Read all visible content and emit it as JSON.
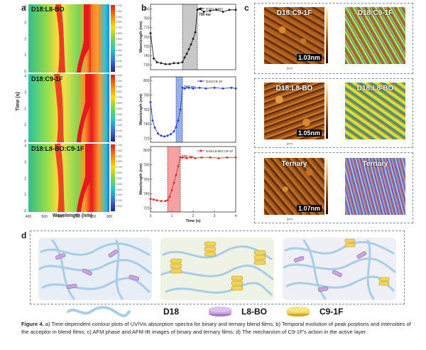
{
  "panels": {
    "a": "a",
    "b": "b",
    "c": "c",
    "d": "d"
  },
  "panel_a": {
    "labels": [
      "D18:L8-BO",
      "D18:C9-1F",
      "D18:L8-BO:C9-1F"
    ],
    "y_axis": "Time (s)",
    "x_axis": "Wavelength (nm)",
    "y_ticks": [
      "0",
      "1",
      "2",
      "3",
      "4"
    ],
    "x_ticks": [
      "400",
      "500",
      "600",
      "700",
      "800",
      "900"
    ],
    "colorbar_ticks": [
      "1.100",
      "1.000",
      "0.900",
      "0.800",
      "0.700",
      "0.600",
      "0.500",
      "0.400",
      "0.300",
      "0.200",
      "0.100",
      "0.000"
    ]
  },
  "chart_data": [
    {
      "type": "line",
      "title": "D18:L8-BO",
      "annotation": "700 ms",
      "ylabel": "Wavelength (nm)",
      "xlabel": "Time (s)",
      "ylim": [
        725,
        795
      ],
      "xlim": [
        0,
        4
      ],
      "y_ticks": [
        730,
        740,
        750,
        760,
        770,
        780,
        790
      ],
      "shaded_span": [
        1.5,
        2.2
      ],
      "x": [
        0.0,
        0.15,
        0.3,
        0.5,
        0.7,
        0.9,
        1.1,
        1.3,
        1.5,
        1.6,
        1.7,
        1.8,
        1.9,
        2.0,
        2.1,
        2.2,
        2.3,
        2.5,
        2.8,
        3.1,
        3.4,
        3.7,
        4.0
      ],
      "y": [
        764,
        737,
        733,
        732,
        731,
        731,
        732,
        732,
        733,
        738,
        742,
        747,
        752,
        758,
        765,
        789,
        790,
        787,
        788,
        789,
        787,
        789,
        789
      ]
    },
    {
      "type": "line",
      "title": "D18:C9-1F",
      "annotation": "300 ms",
      "ylabel": "Wavelength (nm)",
      "xlabel": "Time (s)",
      "ylim": [
        715,
        805
      ],
      "xlim": [
        0,
        4
      ],
      "y_ticks": [
        720,
        740,
        760,
        780,
        800
      ],
      "shaded_span": [
        1.2,
        1.5
      ],
      "x": [
        0.0,
        0.1,
        0.2,
        0.35,
        0.5,
        0.65,
        0.8,
        0.95,
        1.1,
        1.2,
        1.3,
        1.4,
        1.5,
        1.6,
        1.8,
        2.0,
        2.3,
        2.6,
        3.0,
        3.4,
        3.8,
        4.0
      ],
      "y": [
        770,
        745,
        735,
        727,
        724,
        723,
        724,
        726,
        730,
        736,
        745,
        760,
        790,
        789,
        790,
        789,
        790,
        789,
        790,
        789,
        790,
        789
      ]
    },
    {
      "type": "line",
      "title": "D18:L8-BO:C9-1F",
      "annotation": "600 ms",
      "ylabel": "Wavelength (nm)",
      "xlabel": "Time (s)",
      "ylim": [
        715,
        805
      ],
      "xlim": [
        0,
        4
      ],
      "y_ticks": [
        720,
        740,
        760,
        780,
        800
      ],
      "x_ticks": [
        0,
        1,
        2,
        3,
        4
      ],
      "shaded_span": [
        0.8,
        1.4
      ],
      "x": [
        0.0,
        0.15,
        0.3,
        0.5,
        0.7,
        0.8,
        0.9,
        1.0,
        1.1,
        1.2,
        1.3,
        1.4,
        1.5,
        1.7,
        1.9,
        2.1,
        2.4,
        2.8,
        3.2,
        3.6,
        4.0
      ],
      "y": [
        733,
        732,
        731,
        730,
        730,
        731,
        736,
        745,
        755,
        766,
        778,
        790,
        790,
        789,
        790,
        789,
        790,
        790,
        789,
        790,
        790
      ]
    }
  ],
  "panel_c": {
    "rows": [
      {
        "phase_label": "D18:C9-1F",
        "ir_label": "D18:C9-1F",
        "roughness": "1.03nm"
      },
      {
        "phase_label": "D18:L8-BO",
        "ir_label": "D18:L8-BO",
        "roughness": "1.05nm"
      },
      {
        "phase_label": "Ternary",
        "ir_label": "Ternary",
        "roughness": "1.07nm"
      }
    ],
    "axis_unit": "[µm]"
  },
  "legend": {
    "d18": "D18",
    "l8bo": "L8-BO",
    "c91f": "C9-1F"
  },
  "caption": {
    "label": "Figure 4.",
    "text": " a) Time-dependent contour plots of UV/Vis absorption spectra for binary and ternary blend films; b) Temporal evolution of peak positions and intensities of the acceptor in blend films; c) AFM phase and AFM-IR images of binary and ternary films; d) The mechanism of C9-1F's action in the active layer."
  },
  "colors": {
    "line1": "#222222",
    "span1": "#9a9a9a",
    "line2": "#2f44c8",
    "span2": "#3f6fe0",
    "line3": "#e0302b",
    "span3": "#ee5555",
    "d18": "#a9cde6",
    "l8bo": "#c9a6e0",
    "c91f": "#f2d45a"
  }
}
